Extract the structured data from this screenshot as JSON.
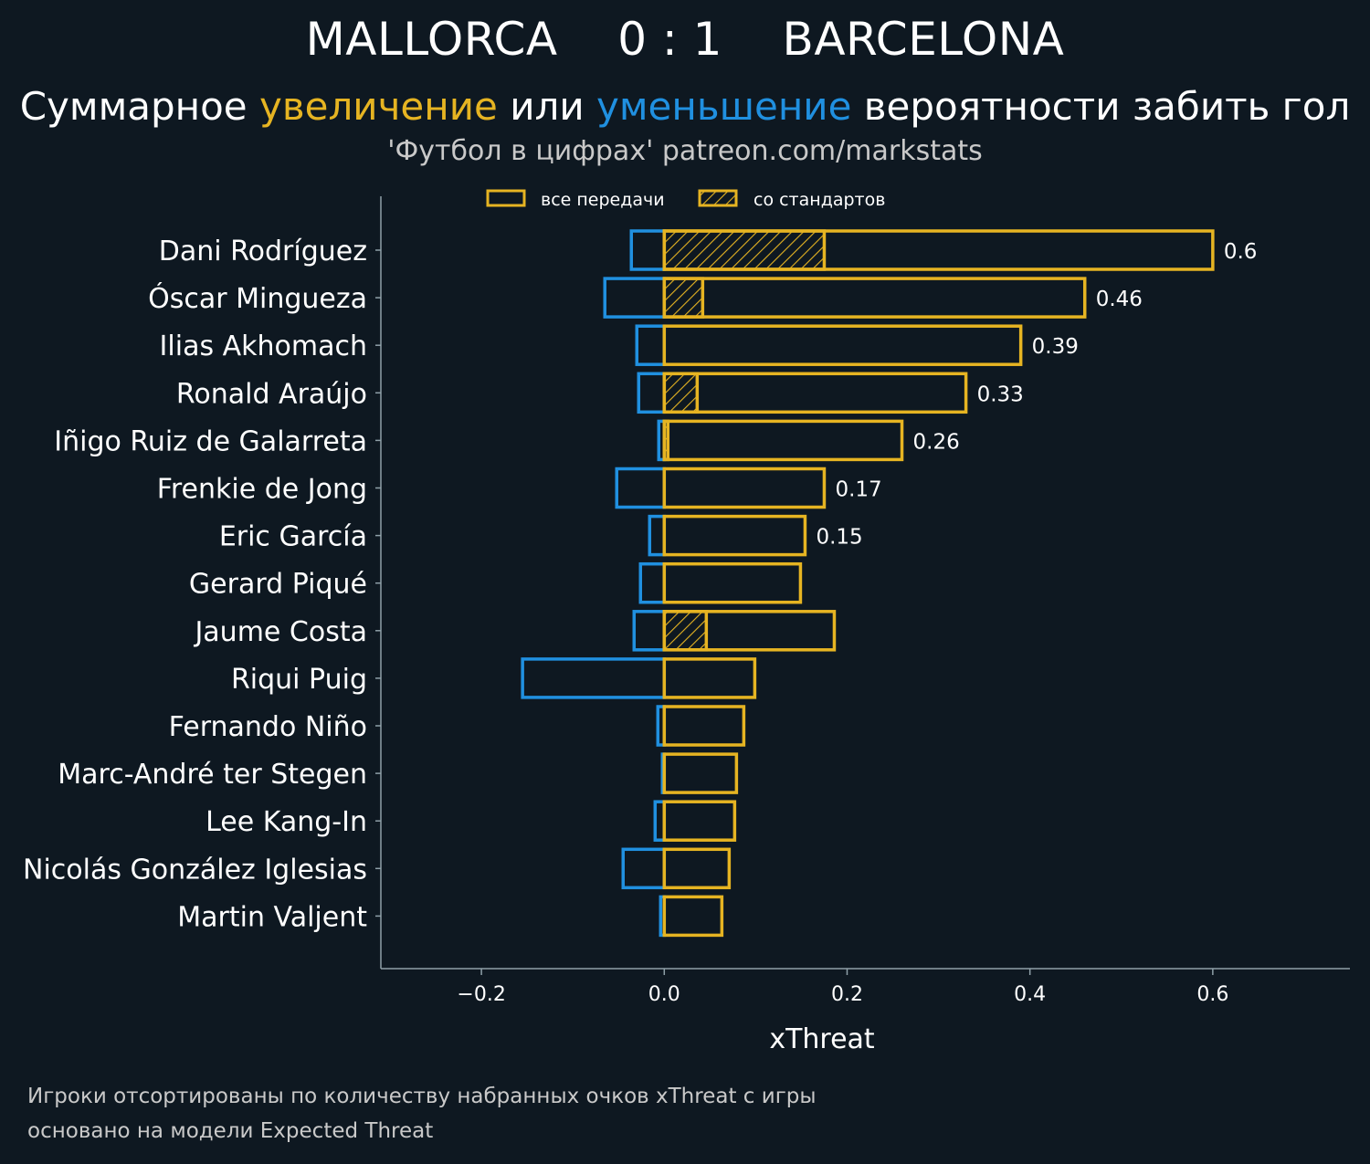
{
  "header": {
    "title": "MALLORCA    0 : 1    BARCELONA",
    "subtitle_part1": "Суммарное ",
    "subtitle_increase": "увеличение",
    "subtitle_part2": " или ",
    "subtitle_decrease": "уменьшение",
    "subtitle_part3": " вероятности забить гол",
    "credit": "'Футбол в цифрах' patreon.com/markstats"
  },
  "footer": {
    "line1": "Игроки отсортированы по количеству набранных очков xThreat с игры",
    "line2": "основано на модели Expected Threat"
  },
  "colors": {
    "background": "#0e1821",
    "increase": "#e6b422",
    "decrease": "#2090e0",
    "axis": "#8fa0a8"
  },
  "chart_data": {
    "type": "bar",
    "orientation": "horizontal",
    "xlabel": "xThreat",
    "xlim": [
      -0.31,
      0.75
    ],
    "xticks": [
      -0.2,
      0.0,
      0.2,
      0.4,
      0.6
    ],
    "xtick_labels": [
      "−0.2",
      "0.0",
      "0.2",
      "0.4",
      "0.6"
    ],
    "legend": {
      "position": "top",
      "entries": [
        "все передачи",
        "со стандартов"
      ]
    },
    "categories": [
      "Dani Rodríguez",
      "Óscar Mingueza",
      "Ilias Akhomach",
      "Ronald Araújo",
      "Iñigo Ruiz de Galarreta",
      "Frenkie de Jong",
      "Eric García",
      "Gerard Piqué",
      "Jaume Costa",
      "Riqui Puig",
      "Fernando Niño",
      "Marc-André ter Stegen",
      "Lee Kang-In",
      "Nicolás González Iglesias",
      "Martin Valjent"
    ],
    "series": [
      {
        "name": "increase",
        "values": [
          0.6,
          0.46,
          0.39,
          0.33,
          0.26,
          0.175,
          0.154,
          0.149,
          0.186,
          0.099,
          0.087,
          0.079,
          0.077,
          0.071,
          0.063
        ]
      },
      {
        "name": "decrease",
        "values": [
          -0.036,
          -0.065,
          -0.03,
          -0.028,
          -0.006,
          -0.052,
          -0.016,
          -0.026,
          -0.033,
          -0.155,
          -0.007,
          -0.002,
          -0.01,
          -0.045,
          -0.004
        ]
      },
      {
        "name": "set_pieces",
        "values": [
          0.175,
          0.042,
          0.0,
          0.036,
          0.004,
          0.0,
          0.0,
          0.0,
          0.046,
          0.0,
          0.0,
          0.0,
          0.0,
          0.0,
          0.0
        ]
      }
    ],
    "data_labels": [
      "0.6",
      "0.46",
      "0.39",
      "0.33",
      "0.26",
      "0.17",
      "0.15",
      "",
      "",
      "",
      "",
      "",
      "",
      "",
      ""
    ]
  }
}
